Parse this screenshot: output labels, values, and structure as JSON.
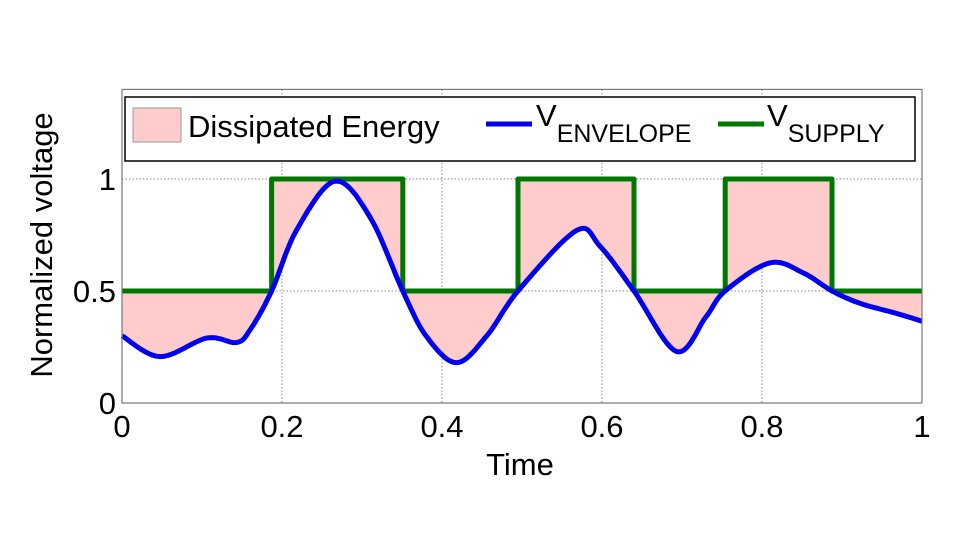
{
  "chart_data": {
    "type": "line",
    "title": "",
    "xlabel": "Time",
    "ylabel": "Normalized voltage",
    "xlim": [
      0,
      1
    ],
    "ylim": [
      0,
      1.4
    ],
    "xticks": [
      0,
      0.2,
      0.4,
      0.6,
      0.8,
      1
    ],
    "xtick_labels": [
      "0",
      "0.2",
      "0.4",
      "0.6",
      "0.8",
      "1"
    ],
    "yticks": [
      0,
      0.5,
      1
    ],
    "ytick_labels": [
      "0",
      "0.5",
      "1"
    ],
    "grid": true,
    "legend_placement": "top",
    "legend": [
      {
        "label": "Dissipated Energy",
        "sub": "",
        "kind": "patch"
      },
      {
        "label": "V",
        "sub": "ENVELOPE",
        "kind": "line"
      },
      {
        "label": "V",
        "sub": "SUPPLY",
        "kind": "line"
      }
    ],
    "colors": {
      "fill": "#ffcccc",
      "envelope": "#0000ee",
      "supply": "#007700"
    },
    "series": [
      {
        "name": "V_ENVELOPE",
        "x": [
          0,
          0.0475,
          0.106,
          0.143,
          0.16,
          0.187,
          0.218,
          0.266,
          0.31,
          0.351,
          0.38,
          0.418,
          0.456,
          0.495,
          0.568,
          0.5975,
          0.64,
          0.693,
          0.73,
          0.754,
          0.81,
          0.852,
          0.8875,
          0.9225,
          0.968,
          1.0
        ],
        "y": [
          0.3,
          0.207,
          0.29,
          0.27,
          0.326,
          0.5,
          0.77,
          0.99,
          0.83,
          0.5,
          0.3,
          0.18,
          0.3,
          0.5,
          0.77,
          0.7,
          0.5,
          0.23,
          0.385,
          0.5,
          0.626,
          0.58,
          0.5,
          0.445,
          0.4,
          0.365
        ]
      },
      {
        "name": "V_SUPPLY",
        "x": [
          0,
          0.187,
          0.187,
          0.351,
          0.351,
          0.495,
          0.495,
          0.64,
          0.64,
          0.754,
          0.754,
          0.8875,
          0.8875,
          1.0
        ],
        "y": [
          0.5,
          0.5,
          1,
          1,
          0.5,
          0.5,
          1,
          1,
          0.5,
          0.5,
          1,
          1,
          0.5,
          0.5
        ]
      }
    ]
  }
}
